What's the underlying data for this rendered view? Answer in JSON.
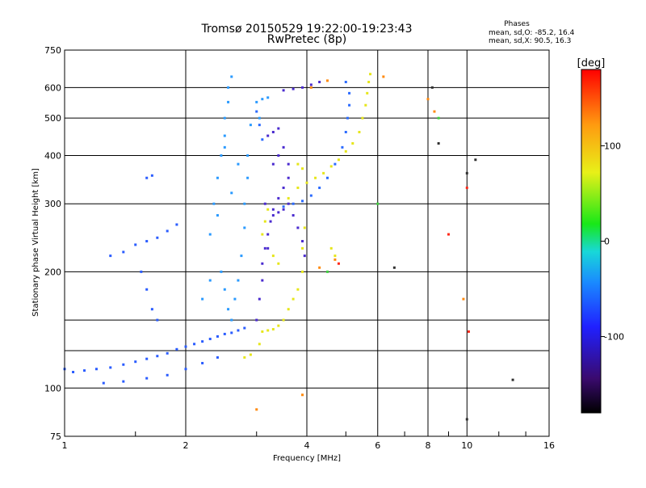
{
  "chart_data": {
    "type": "scatter",
    "title": "Tromsø 20150529 19:22:00-19:23:43",
    "subtitle": "RwPretec (8p)",
    "xlabel": "Frequency [MHz]",
    "ylabel": "Stationary phase Virtual Height [km]",
    "x_scale": "log",
    "y_scale": "log",
    "xlim": [
      1,
      16
    ],
    "ylim": [
      75,
      750
    ],
    "grid": true,
    "x_ticks": [
      1,
      2,
      4,
      8,
      16
    ],
    "x_minor_gridlines": [
      6,
      10
    ],
    "x_minor_tick_labels": [
      {
        "value": 6,
        "label": "6"
      },
      {
        "value": 10,
        "label": "10"
      }
    ],
    "y_ticks": [
      75,
      100,
      200,
      300,
      400,
      500,
      600,
      750
    ],
    "y_minor_gridlines": [
      125,
      150
    ],
    "stats_header": "Phases",
    "stats_lines": [
      "mean, sd,O: -85.2, 16.4",
      "mean, sd,X:  90.5, 16.3"
    ],
    "colorbar": {
      "label": "[deg]",
      "range": [
        -180,
        180
      ],
      "ticks": [
        -100,
        0,
        100
      ]
    },
    "series": [
      {
        "color": "#2a5cff",
        "points": [
          [
            1.0,
            112
          ],
          [
            1.05,
            110
          ],
          [
            1.12,
            111
          ],
          [
            1.2,
            112
          ],
          [
            1.3,
            113
          ],
          [
            1.4,
            115
          ],
          [
            1.5,
            117
          ],
          [
            1.6,
            119
          ],
          [
            1.7,
            121
          ],
          [
            1.8,
            123
          ],
          [
            1.9,
            126
          ],
          [
            2.0,
            128
          ],
          [
            2.1,
            130
          ],
          [
            2.2,
            132
          ],
          [
            2.3,
            134
          ],
          [
            2.4,
            136
          ],
          [
            2.5,
            138
          ],
          [
            2.6,
            139
          ],
          [
            2.7,
            141
          ],
          [
            2.8,
            143
          ],
          [
            1.25,
            103
          ],
          [
            1.4,
            104
          ],
          [
            1.6,
            106
          ],
          [
            1.8,
            108
          ],
          [
            2.0,
            112
          ],
          [
            2.2,
            116
          ],
          [
            2.4,
            120
          ],
          [
            1.3,
            220
          ],
          [
            1.4,
            225
          ],
          [
            1.5,
            235
          ],
          [
            1.6,
            240
          ],
          [
            1.7,
            245
          ],
          [
            1.8,
            255
          ],
          [
            1.9,
            265
          ],
          [
            1.6,
            350
          ],
          [
            1.65,
            355
          ],
          [
            1.55,
            200
          ],
          [
            1.6,
            180
          ],
          [
            1.65,
            160
          ],
          [
            1.7,
            150
          ]
        ]
      },
      {
        "color": "#2a9aff",
        "points": [
          [
            2.3,
            250
          ],
          [
            2.35,
            300
          ],
          [
            2.4,
            350
          ],
          [
            2.45,
            400
          ],
          [
            2.5,
            450
          ],
          [
            2.5,
            500
          ],
          [
            2.55,
            550
          ],
          [
            2.55,
            600
          ],
          [
            2.6,
            640
          ],
          [
            2.45,
            200
          ],
          [
            2.5,
            180
          ],
          [
            2.55,
            160
          ],
          [
            2.6,
            150
          ],
          [
            2.65,
            170
          ],
          [
            2.7,
            190
          ],
          [
            2.75,
            220
          ],
          [
            2.8,
            260
          ],
          [
            2.8,
            300
          ],
          [
            2.85,
            350
          ],
          [
            2.85,
            400
          ],
          [
            2.3,
            190
          ],
          [
            2.2,
            170
          ],
          [
            2.4,
            280
          ],
          [
            2.6,
            320
          ],
          [
            2.7,
            380
          ],
          [
            2.5,
            420
          ],
          [
            3.0,
            550
          ],
          [
            3.1,
            560
          ],
          [
            3.2,
            565
          ],
          [
            2.9,
            480
          ],
          [
            3.05,
            500
          ]
        ]
      },
      {
        "color": "#4a2bcf",
        "points": [
          [
            3.0,
            150
          ],
          [
            3.05,
            170
          ],
          [
            3.1,
            190
          ],
          [
            3.1,
            210
          ],
          [
            3.15,
            230
          ],
          [
            3.2,
            250
          ],
          [
            3.25,
            270
          ],
          [
            3.3,
            290
          ],
          [
            3.4,
            310
          ],
          [
            3.5,
            330
          ],
          [
            3.6,
            350
          ],
          [
            3.3,
            380
          ],
          [
            3.4,
            400
          ],
          [
            3.5,
            420
          ],
          [
            3.2,
            450
          ],
          [
            3.3,
            460
          ],
          [
            3.4,
            470
          ],
          [
            3.6,
            300
          ],
          [
            3.7,
            280
          ],
          [
            3.8,
            260
          ],
          [
            3.9,
            240
          ],
          [
            3.95,
            220
          ],
          [
            3.5,
            590
          ],
          [
            3.7,
            595
          ],
          [
            3.9,
            600
          ],
          [
            4.1,
            610
          ],
          [
            4.3,
            620
          ],
          [
            3.3,
            280
          ],
          [
            3.4,
            285
          ],
          [
            3.5,
            290
          ],
          [
            3.2,
            230
          ],
          [
            3.15,
            300
          ],
          [
            3.6,
            380
          ]
        ]
      },
      {
        "color": "#2a6aff",
        "points": [
          [
            3.5,
            295
          ],
          [
            3.7,
            300
          ],
          [
            3.9,
            305
          ],
          [
            4.1,
            315
          ],
          [
            4.3,
            330
          ],
          [
            4.5,
            350
          ],
          [
            4.7,
            380
          ],
          [
            4.9,
            420
          ],
          [
            5.0,
            460
          ],
          [
            5.05,
            500
          ],
          [
            5.1,
            540
          ],
          [
            5.1,
            580
          ],
          [
            5.0,
            620
          ],
          [
            3.0,
            520
          ],
          [
            3.05,
            480
          ],
          [
            3.1,
            440
          ]
        ]
      },
      {
        "color": "#e6e61a",
        "points": [
          [
            3.1,
            140
          ],
          [
            3.2,
            141
          ],
          [
            3.3,
            142
          ],
          [
            3.4,
            145
          ],
          [
            3.5,
            150
          ],
          [
            3.6,
            160
          ],
          [
            3.7,
            170
          ],
          [
            3.8,
            180
          ],
          [
            3.9,
            200
          ],
          [
            3.9,
            230
          ],
          [
            3.95,
            260
          ],
          [
            2.8,
            120
          ],
          [
            2.9,
            122
          ],
          [
            3.05,
            130
          ],
          [
            3.1,
            250
          ],
          [
            3.15,
            270
          ],
          [
            3.2,
            290
          ],
          [
            3.3,
            220
          ],
          [
            3.4,
            210
          ],
          [
            3.6,
            310
          ],
          [
            3.8,
            330
          ],
          [
            4.0,
            340
          ],
          [
            4.2,
            350
          ],
          [
            4.4,
            360
          ],
          [
            4.6,
            375
          ],
          [
            4.8,
            390
          ],
          [
            5.0,
            410
          ],
          [
            5.2,
            430
          ],
          [
            5.4,
            460
          ],
          [
            5.5,
            500
          ],
          [
            5.6,
            540
          ],
          [
            5.65,
            580
          ],
          [
            5.7,
            620
          ],
          [
            5.75,
            650
          ],
          [
            3.8,
            380
          ],
          [
            3.9,
            370
          ],
          [
            4.6,
            230
          ],
          [
            4.7,
            220
          ]
        ]
      },
      {
        "color": "#ff8a10",
        "points": [
          [
            3.0,
            88
          ],
          [
            3.9,
            96
          ],
          [
            4.1,
            600
          ],
          [
            4.5,
            625
          ],
          [
            6.2,
            640
          ],
          [
            4.7,
            215
          ],
          [
            4.3,
            205
          ],
          [
            8.0,
            560
          ],
          [
            8.3,
            520
          ],
          [
            9.8,
            170
          ]
        ]
      },
      {
        "color": "#ff2a1a",
        "points": [
          [
            4.8,
            210
          ],
          [
            9.0,
            250
          ],
          [
            10.0,
            330
          ],
          [
            10.1,
            140
          ]
        ]
      },
      {
        "color": "#40d040",
        "points": [
          [
            4.5,
            200
          ],
          [
            8.5,
            500
          ],
          [
            6.0,
            300
          ]
        ]
      },
      {
        "color": "#303030",
        "points": [
          [
            8.2,
            600
          ],
          [
            8.5,
            430
          ],
          [
            10.0,
            83
          ],
          [
            10.0,
            360
          ],
          [
            10.5,
            390
          ],
          [
            13.0,
            105
          ],
          [
            6.6,
            205
          ]
        ]
      }
    ]
  }
}
